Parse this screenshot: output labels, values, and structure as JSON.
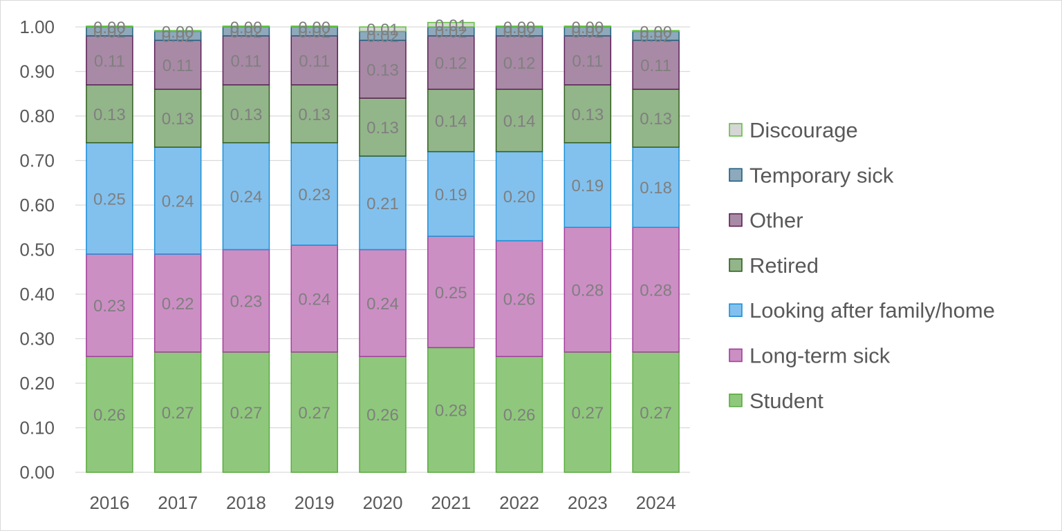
{
  "chart_data": {
    "type": "bar",
    "stacked": true,
    "categories": [
      "2016",
      "2017",
      "2018",
      "2019",
      "2020",
      "2021",
      "2022",
      "2023",
      "2024"
    ],
    "ylim": [
      0,
      1
    ],
    "yticks": [
      "0.00",
      "0.10",
      "0.20",
      "0.30",
      "0.40",
      "0.50",
      "0.60",
      "0.70",
      "0.80",
      "0.90",
      "1.00"
    ],
    "grid": true,
    "legend_position": "right",
    "series": [
      {
        "name": "Student",
        "color": "#8fc87c",
        "stroke": "#5aab3f",
        "values": [
          0.26,
          0.27,
          0.27,
          0.27,
          0.26,
          0.28,
          0.26,
          0.27,
          0.27
        ],
        "labels": [
          "0.26",
          "0.27",
          "0.27",
          "0.27",
          "0.26",
          "0.28",
          "0.26",
          "0.27",
          "0.27"
        ]
      },
      {
        "name": "Long-term sick",
        "color": "#cc8fc4",
        "stroke": "#a13d9b",
        "values": [
          0.23,
          0.22,
          0.23,
          0.24,
          0.24,
          0.25,
          0.26,
          0.28,
          0.28
        ],
        "labels": [
          "0.23",
          "0.22",
          "0.23",
          "0.24",
          "0.24",
          "0.25",
          "0.26",
          "0.28",
          "0.28"
        ]
      },
      {
        "name": "Looking after family/home",
        "color": "#82c1ee",
        "stroke": "#1c8fd6",
        "values": [
          0.25,
          0.24,
          0.24,
          0.23,
          0.21,
          0.19,
          0.2,
          0.19,
          0.18
        ],
        "labels": [
          "0.25",
          "0.24",
          "0.24",
          "0.23",
          "0.21",
          "0.19",
          "0.20",
          "0.19",
          "0.18"
        ]
      },
      {
        "name": "Retired",
        "color": "#93b58a",
        "stroke": "#2f5f1f",
        "values": [
          0.13,
          0.13,
          0.13,
          0.13,
          0.13,
          0.14,
          0.14,
          0.13,
          0.13
        ],
        "labels": [
          "0.13",
          "0.13",
          "0.13",
          "0.13",
          "0.13",
          "0.14",
          "0.14",
          "0.13",
          "0.13"
        ]
      },
      {
        "name": "Other",
        "color": "#a98aa6",
        "stroke": "#5a1f55",
        "values": [
          0.11,
          0.11,
          0.11,
          0.11,
          0.13,
          0.12,
          0.12,
          0.11,
          0.11
        ],
        "labels": [
          "0.11",
          "0.11",
          "0.11",
          "0.11",
          "0.13",
          "0.12",
          "0.12",
          "0.11",
          "0.11"
        ]
      },
      {
        "name": "Temporary sick",
        "color": "#8ea9bc",
        "stroke": "#1f5f7f",
        "values": [
          0.02,
          0.02,
          0.02,
          0.02,
          0.02,
          0.02,
          0.02,
          0.02,
          0.02
        ],
        "labels": [
          "0.02",
          "0.02",
          "0.02",
          "0.02",
          "0.02",
          "0.02",
          "0.02",
          "0.02",
          "0.02"
        ]
      },
      {
        "name": "Discourage",
        "color": "#d6d6d6",
        "stroke": "#5fc03f",
        "values": [
          0.0,
          0.0,
          0.0,
          0.0,
          0.01,
          0.01,
          0.0,
          0.0,
          0.0
        ],
        "labels": [
          "0.00",
          "0.00",
          "0.00",
          "0.00",
          "0.01",
          "0.01",
          "0.00",
          "0.00",
          "0.00"
        ]
      }
    ]
  }
}
